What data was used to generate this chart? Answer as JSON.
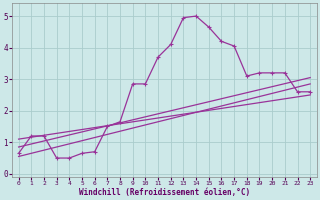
{
  "xlabel": "Windchill (Refroidissement éolien,°C)",
  "bg_color": "#cde8e8",
  "line_color": "#993399",
  "grid_color": "#aacccc",
  "xlim": [
    -0.5,
    23.5
  ],
  "ylim": [
    -0.1,
    5.4
  ],
  "xticks": [
    0,
    1,
    2,
    3,
    4,
    5,
    6,
    7,
    8,
    9,
    10,
    11,
    12,
    13,
    14,
    15,
    16,
    17,
    18,
    19,
    20,
    21,
    22,
    23
  ],
  "yticks": [
    0,
    1,
    2,
    3,
    4,
    5
  ],
  "line1_x": [
    0,
    1,
    2,
    3,
    4,
    5,
    6,
    7,
    8,
    9,
    10,
    11,
    12,
    13,
    14,
    15,
    16,
    17,
    18,
    19,
    20,
    21,
    22,
    23
  ],
  "line1_y": [
    0.65,
    1.2,
    1.2,
    0.5,
    0.5,
    0.65,
    0.7,
    1.5,
    1.65,
    2.85,
    2.85,
    3.7,
    4.1,
    4.95,
    5.0,
    4.65,
    4.2,
    4.05,
    3.1,
    3.2,
    3.2,
    3.2,
    2.6,
    2.6
  ],
  "line2_x": [
    0,
    23
  ],
  "line2_y": [
    0.55,
    2.85
  ],
  "line3_x": [
    0,
    23
  ],
  "line3_y": [
    0.85,
    3.05
  ],
  "line4_x": [
    0,
    23
  ],
  "line4_y": [
    1.1,
    2.5
  ]
}
